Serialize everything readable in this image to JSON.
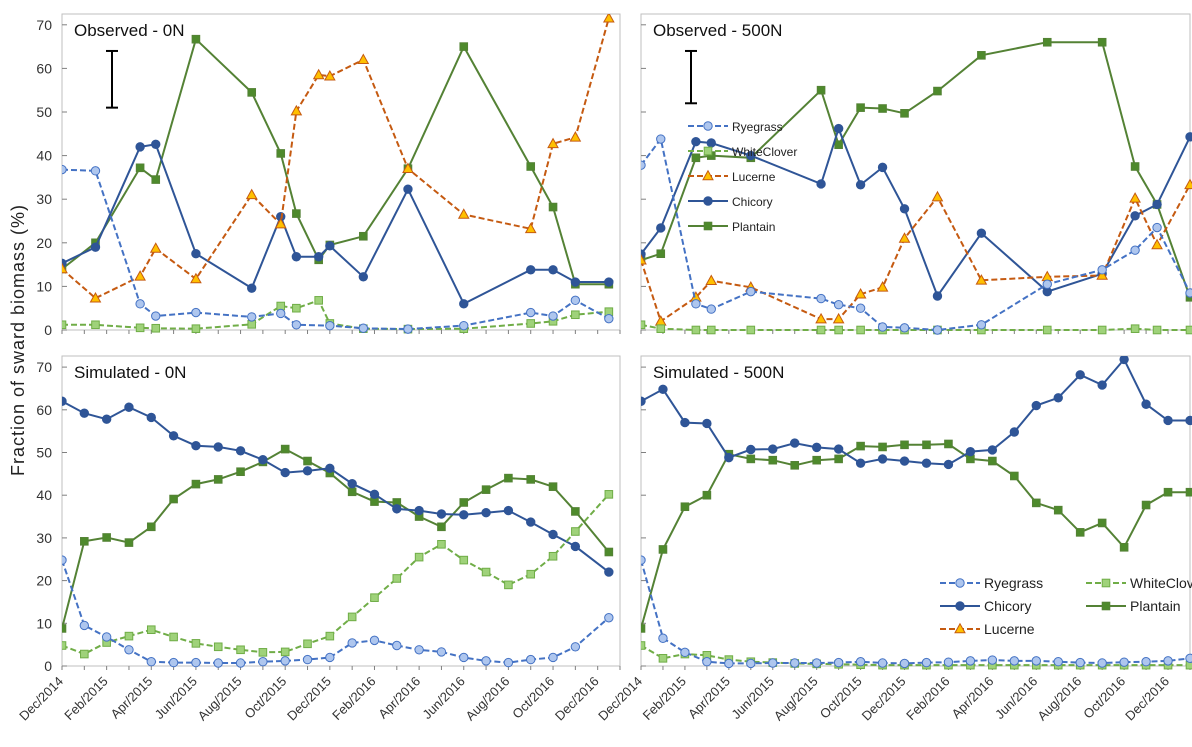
{
  "ylabel": "Fraction of sward biomass (%)",
  "x_tick_labels": [
    "Dec/2014",
    "Feb/2015",
    "Apr/2015",
    "Jun/2015",
    "Aug/2015",
    "Oct/2015",
    "Dec/2015",
    "Feb/2016",
    "Apr/2016",
    "Jun/2016",
    "Aug/2016",
    "Oct/2016",
    "Dec/2016"
  ],
  "colors": {
    "Ryegrass": "#4472c4",
    "Ryegrass_fill": "#aec6ee",
    "WhiteClover": "#70ad47",
    "WhiteClover_fill": "#9fd27a",
    "Lucerne": "#c55a11",
    "Lucerne_fill": "#ffc000",
    "Chicory": "#2f5597",
    "Plantain": "#548235",
    "Plantain_fill": "#4e8a2c"
  },
  "chart_data": [
    {
      "type": "line",
      "title": "Observed - 0N",
      "x_unit": "months since Dec/2014",
      "xlim": [
        0,
        25
      ],
      "ylim": [
        0,
        73
      ],
      "yticks": [
        0,
        10,
        20,
        30,
        40,
        50,
        60,
        70
      ],
      "error_bar": {
        "x": 1.5,
        "y_low": 51,
        "y_high": 64
      },
      "series": [
        {
          "name": "Ryegrass",
          "x": [
            0,
            1.5,
            3.5,
            4.2,
            6,
            8.5,
            9.8,
            10.5,
            12,
            13.5,
            15.5,
            18,
            21,
            22,
            23,
            24.5
          ],
          "y": [
            36.8,
            36.5,
            6,
            3.2,
            4,
            3,
            3.8,
            1.2,
            1,
            0.4,
            0.2,
            1,
            4,
            3.2,
            6.8,
            2.6
          ]
        },
        {
          "name": "WhiteClover",
          "x": [
            0,
            1.5,
            3.5,
            4.2,
            6,
            8.5,
            9.8,
            10.5,
            11.5,
            12,
            13.5,
            15.5,
            18,
            21,
            22,
            23,
            24.5
          ],
          "y": [
            1.2,
            1.2,
            0.5,
            0.4,
            0.3,
            1.3,
            5.5,
            5,
            6.8,
            1.5,
            0.3,
            0.2,
            0.3,
            1.5,
            2,
            3.5,
            4.2
          ]
        },
        {
          "name": "Lucerne",
          "x": [
            0,
            1.5,
            3.5,
            4.2,
            6,
            8.5,
            9.8,
            10.5,
            11.5,
            12,
            13.5,
            15.5,
            18,
            21,
            22,
            23,
            24.5
          ],
          "y": [
            14,
            7.3,
            12.3,
            18.7,
            11.7,
            31,
            24.3,
            50.2,
            58.5,
            58.2,
            62,
            37,
            26.5,
            23.2,
            42.7,
            44.2,
            71.5
          ]
        },
        {
          "name": "Chicory",
          "x": [
            0,
            1.5,
            3.5,
            4.2,
            6,
            8.5,
            9.8,
            10.5,
            11.5,
            12,
            13.5,
            15.5,
            18,
            21,
            22,
            23,
            24.5
          ],
          "y": [
            15.3,
            19,
            42,
            42.6,
            17.5,
            9.6,
            26,
            16.8,
            16.8,
            19.3,
            12.2,
            32.3,
            6,
            13.8,
            13.8,
            11,
            11
          ]
        },
        {
          "name": "Plantain",
          "x": [
            0,
            1.5,
            3.5,
            4.2,
            6,
            8.5,
            9.8,
            10.5,
            11.5,
            12,
            13.5,
            15.5,
            18,
            21,
            22,
            23,
            24.5
          ],
          "y": [
            14,
            20,
            37.2,
            34.5,
            66.7,
            54.5,
            40.5,
            26.7,
            16.1,
            19.5,
            21.5,
            37,
            65,
            37.5,
            28.2,
            10.5,
            10.5
          ]
        }
      ]
    },
    {
      "type": "line",
      "title": "Observed - 500N",
      "x_unit": "months since Dec/2014",
      "xlim": [
        0,
        25
      ],
      "ylim": [
        0,
        73
      ],
      "yticks": [
        0,
        10,
        20,
        30,
        40,
        50,
        60,
        70
      ],
      "error_bar": {
        "x": 1.5,
        "y_low": 52,
        "y_high": 64
      },
      "legend": {
        "position": "top-right",
        "entries": [
          "Ryegrass",
          "WhiteClover",
          "Lucerne",
          "Chicory",
          "Plantain"
        ]
      },
      "series": [
        {
          "name": "Ryegrass",
          "x": [
            0,
            0.9,
            2.5,
            3.2,
            5,
            8.2,
            9,
            10,
            11,
            12,
            13.5,
            15.5,
            18.5,
            21,
            22.5,
            23.5,
            25
          ],
          "y": [
            37.8,
            43.8,
            6,
            4.8,
            8.8,
            7.2,
            5.8,
            5,
            0.7,
            0.5,
            0,
            1.2,
            10.5,
            13.8,
            18.3,
            23.5,
            8.5
          ]
        },
        {
          "name": "WhiteClover",
          "x": [
            0,
            0.9,
            2.5,
            3.2,
            5,
            8.2,
            9,
            10,
            11,
            12,
            13.5,
            15.5,
            18.5,
            21,
            22.5,
            23.5,
            25
          ],
          "y": [
            1.2,
            0.3,
            0,
            0,
            0,
            0,
            0,
            0,
            0,
            0,
            0,
            0,
            0,
            0,
            0.3,
            0,
            0
          ]
        },
        {
          "name": "Lucerne",
          "x": [
            0,
            0.9,
            2.5,
            3.2,
            5,
            8.2,
            9,
            10,
            11,
            12,
            13.5,
            15.5,
            18.5,
            21,
            22.5,
            23.5,
            25
          ],
          "y": [
            16,
            2,
            7.5,
            11.3,
            9.8,
            2.5,
            2.5,
            8.2,
            9.8,
            21,
            30.5,
            11.4,
            12.2,
            12.5,
            30.2,
            19.5,
            33.3
          ]
        },
        {
          "name": "Chicory",
          "x": [
            0,
            0.9,
            2.5,
            3.2,
            5,
            8.2,
            9,
            10,
            11,
            12,
            13.5,
            15.5,
            18.5,
            21,
            22.5,
            23.5,
            25
          ],
          "y": [
            17.4,
            23.4,
            43.2,
            42.9,
            40,
            33.5,
            46.2,
            33.3,
            37.3,
            27.8,
            7.8,
            22.2,
            8.8,
            12.9,
            26.2,
            28.8,
            44.3
          ]
        },
        {
          "name": "Plantain",
          "x": [
            0,
            0.9,
            2.5,
            3.2,
            5,
            8.2,
            9,
            10,
            11,
            12,
            13.5,
            15.5,
            18.5,
            21,
            22.5,
            23.5,
            25
          ],
          "y": [
            16,
            17.5,
            39.5,
            40,
            39.5,
            55,
            42.5,
            51,
            50.8,
            49.7,
            54.8,
            63,
            66,
            66,
            37.5,
            28.8,
            7.5
          ]
        }
      ]
    },
    {
      "type": "line",
      "title": "Simulated - 0N",
      "x_unit": "months since Dec/2014",
      "xlim": [
        0,
        25
      ],
      "ylim": [
        0,
        73
      ],
      "yticks": [
        0,
        10,
        20,
        30,
        40,
        50,
        60,
        70
      ],
      "legend": {
        "position": "none"
      },
      "series": [
        {
          "name": "Ryegrass",
          "x": [
            0,
            1,
            2,
            3,
            4,
            5,
            6,
            7,
            8,
            9,
            10,
            11,
            12,
            13,
            14,
            15,
            16,
            17,
            18,
            19,
            20,
            21,
            22,
            23,
            24.5
          ],
          "y": [
            24.8,
            9.5,
            6.8,
            3.8,
            1,
            0.8,
            0.8,
            0.7,
            0.7,
            1,
            1.2,
            1.5,
            2,
            5.4,
            6,
            4.8,
            3.8,
            3.3,
            2,
            1.2,
            0.8,
            1.5,
            2,
            4.5,
            11.3
          ]
        },
        {
          "name": "WhiteClover",
          "x": [
            0,
            1,
            2,
            3,
            4,
            5,
            6,
            7,
            8,
            9,
            10,
            11,
            12,
            13,
            14,
            15,
            16,
            17,
            18,
            19,
            20,
            21,
            22,
            23,
            24.5
          ],
          "y": [
            4.8,
            2.8,
            5.5,
            7,
            8.5,
            6.8,
            5.3,
            4.5,
            3.8,
            3.2,
            3.3,
            5.2,
            7,
            11.5,
            16,
            20.5,
            25.5,
            28.5,
            24.8,
            22,
            19,
            21.5,
            25.7,
            31.5,
            40.2
          ]
        },
        {
          "name": "Chicory",
          "x": [
            0,
            1,
            2,
            3,
            4,
            5,
            6,
            7,
            8,
            9,
            10,
            11,
            12,
            13,
            14,
            15,
            16,
            17,
            18,
            19,
            20,
            21,
            22,
            23,
            24.5
          ],
          "y": [
            62,
            59.2,
            57.8,
            60.6,
            58.2,
            53.9,
            51.6,
            51.3,
            50.4,
            48.3,
            45.3,
            45.7,
            46.3,
            42.7,
            40.2,
            36.8,
            36.4,
            35.6,
            35.4,
            35.9,
            36.4,
            33.7,
            30.8,
            28,
            22
          ]
        },
        {
          "name": "Plantain",
          "x": [
            0,
            1,
            2,
            3,
            4,
            5,
            6,
            7,
            8,
            9,
            10,
            11,
            12,
            13,
            14,
            15,
            16,
            17,
            18,
            19,
            20,
            21,
            22,
            23,
            24.5
          ],
          "y": [
            8.8,
            29.2,
            30.1,
            28.9,
            32.6,
            39.1,
            42.6,
            43.7,
            45.5,
            47.8,
            50.8,
            48,
            45.2,
            40.8,
            38.5,
            38.3,
            35,
            32.6,
            38.3,
            41.3,
            44,
            43.7,
            42,
            36.2,
            26.7
          ]
        }
      ]
    },
    {
      "type": "line",
      "title": "Simulated - 500N",
      "x_unit": "months since Dec/2014",
      "xlim": [
        0,
        25
      ],
      "ylim": [
        0,
        73
      ],
      "yticks": [
        0,
        10,
        20,
        30,
        40,
        50,
        60,
        70
      ],
      "legend": {
        "position": "bottom-right",
        "entries": [
          "Ryegrass",
          "WhiteClover",
          "Chicory",
          "Plantain",
          "Lucerne"
        ]
      },
      "series": [
        {
          "name": "Ryegrass",
          "x": [
            0,
            1,
            2,
            3,
            4,
            5,
            6,
            7,
            8,
            9,
            10,
            11,
            12,
            13,
            14,
            15,
            16,
            17,
            18,
            19,
            20,
            21,
            22,
            23,
            24,
            25
          ],
          "y": [
            24.8,
            6.5,
            3.2,
            1,
            0.6,
            0.6,
            0.7,
            0.7,
            0.7,
            0.8,
            1,
            0.7,
            0.6,
            0.8,
            0.9,
            1.2,
            1.4,
            1.2,
            1.2,
            1,
            0.8,
            0.7,
            0.9,
            1,
            1.2,
            1.8
          ]
        },
        {
          "name": "WhiteClover",
          "x": [
            0,
            1,
            2,
            3,
            4,
            5,
            6,
            7,
            8,
            9,
            10,
            11,
            12,
            13,
            14,
            15,
            16,
            17,
            18,
            19,
            20,
            21,
            22,
            23,
            24,
            25
          ],
          "y": [
            4.8,
            1.8,
            2.8,
            2.5,
            1.5,
            1,
            0.8,
            0.6,
            0.5,
            0.4,
            0.3,
            0.2,
            0.2,
            0.2,
            0.2,
            0.2,
            0.2,
            0.2,
            0.2,
            0.2,
            0.2,
            0.2,
            0.2,
            0.2,
            0.2,
            0.2
          ]
        },
        {
          "name": "Chicory",
          "x": [
            0,
            1,
            2,
            3,
            4,
            5,
            6,
            7,
            8,
            9,
            10,
            11,
            12,
            13,
            14,
            15,
            16,
            17,
            18,
            19,
            20,
            21,
            22,
            23,
            24,
            25
          ],
          "y": [
            62,
            64.8,
            57,
            56.8,
            48.8,
            50.7,
            50.8,
            52.2,
            51.2,
            50.8,
            47.5,
            48.5,
            48,
            47.5,
            47.2,
            50.2,
            50.6,
            54.8,
            61,
            62.8,
            68.2,
            65.8,
            71.8,
            61.3,
            57.5,
            57.5
          ]
        },
        {
          "name": "Plantain",
          "x": [
            0,
            1,
            2,
            3,
            4,
            5,
            6,
            7,
            8,
            9,
            10,
            11,
            12,
            13,
            14,
            15,
            16,
            17,
            18,
            19,
            20,
            21,
            22,
            23,
            24,
            25
          ],
          "y": [
            8.8,
            27.3,
            37.3,
            40,
            49.6,
            48.5,
            48.2,
            47,
            48.2,
            48.5,
            51.5,
            51.3,
            51.8,
            51.8,
            52,
            48.5,
            48,
            44.5,
            38.2,
            36.5,
            31.3,
            33.5,
            27.8,
            37.7,
            40.7,
            40.7
          ]
        }
      ]
    }
  ]
}
